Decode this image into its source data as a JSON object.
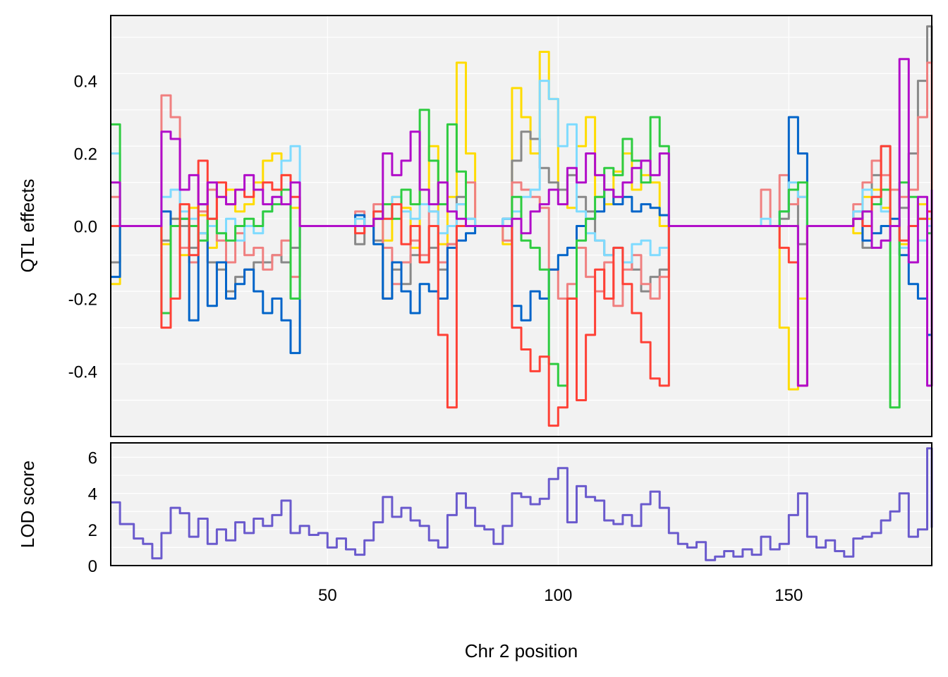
{
  "chart_data": [
    {
      "type": "line",
      "panel": "top",
      "ylabel": "QTL effects",
      "xlim": [
        3,
        181
      ],
      "ylim": [
        -0.58,
        0.58
      ],
      "yticks": [
        -0.4,
        -0.2,
        0.0,
        0.2,
        0.4
      ],
      "ytick_labels": [
        "-0.4",
        "-0.2",
        "0.0",
        "0.2",
        "0.4"
      ],
      "grid": true,
      "x": [
        3,
        5,
        8,
        10,
        12,
        14,
        16,
        18,
        20,
        22,
        24,
        26,
        28,
        30,
        32,
        34,
        36,
        38,
        40,
        42,
        44,
        46,
        48,
        50,
        52,
        54,
        56,
        58,
        60,
        62,
        64,
        66,
        68,
        70,
        72,
        74,
        76,
        78,
        80,
        82,
        84,
        86,
        88,
        90,
        92,
        94,
        96,
        98,
        100,
        102,
        104,
        106,
        108,
        110,
        112,
        114,
        116,
        118,
        120,
        122,
        124,
        126,
        128,
        130,
        132,
        134,
        136,
        138,
        140,
        142,
        144,
        146,
        148,
        150,
        152,
        154,
        156,
        158,
        160,
        162,
        164,
        166,
        168,
        170,
        172,
        174,
        176,
        178,
        180,
        181
      ],
      "series": [
        {
          "color": "#FFDC00",
          "values": [
            -0.16,
            0.0,
            0.0,
            0.0,
            0.0,
            -0.05,
            0.02,
            -0.08,
            0.05,
            0.03,
            -0.06,
            0.08,
            0.1,
            0.04,
            0.06,
            0.12,
            0.18,
            0.2,
            0.14,
            0.05,
            0.0,
            0.0,
            0.0,
            0.0,
            0.0,
            0.0,
            0.0,
            0.0,
            0.02,
            -0.04,
            0.08,
            0.05,
            -0.06,
            0.1,
            0.22,
            -0.05,
            0.08,
            0.45,
            0.2,
            0.0,
            0.0,
            0.0,
            -0.05,
            0.38,
            0.3,
            0.2,
            0.48,
            0.35,
            0.1,
            0.05,
            0.22,
            0.3,
            0.08,
            0.06,
            0.15,
            0.2,
            0.1,
            0.14,
            0.12,
            0.0,
            0.0,
            0.0,
            0.0,
            0.0,
            0.0,
            0.0,
            0.0,
            0.0,
            0.0,
            0.0,
            0.0,
            0.0,
            -0.28,
            -0.45,
            -0.2,
            0.0,
            0.0,
            0.0,
            0.0,
            0.0,
            -0.02,
            0.08,
            0.1,
            0.05,
            0.0,
            -0.05,
            0.0,
            0.06,
            0.02,
            0.0
          ]
        },
        {
          "color": "#888888",
          "values": [
            -0.1,
            0.0,
            0.0,
            0.0,
            0.0,
            -0.04,
            0.02,
            0.0,
            -0.06,
            -0.02,
            -0.1,
            -0.12,
            -0.18,
            -0.14,
            -0.12,
            -0.1,
            -0.1,
            -0.08,
            -0.1,
            -0.06,
            0.0,
            0.0,
            0.0,
            0.0,
            0.0,
            0.0,
            -0.05,
            0.0,
            -0.04,
            -0.2,
            -0.12,
            -0.16,
            -0.08,
            -0.1,
            -0.06,
            -0.12,
            -0.05,
            0.08,
            0.02,
            0.0,
            0.0,
            0.0,
            0.02,
            0.18,
            0.26,
            0.24,
            0.16,
            0.12,
            0.1,
            0.14,
            0.08,
            0.04,
            -0.04,
            -0.08,
            -0.06,
            -0.1,
            -0.12,
            -0.18,
            -0.14,
            -0.12,
            0.0,
            0.0,
            0.0,
            0.0,
            0.0,
            0.0,
            0.0,
            0.0,
            0.0,
            0.0,
            0.0,
            0.0,
            0.02,
            0.1,
            -0.05,
            0.0,
            0.0,
            0.0,
            0.0,
            0.0,
            0.04,
            -0.06,
            0.14,
            0.22,
            0.1,
            0.05,
            0.2,
            0.4,
            0.55,
            0.2
          ]
        },
        {
          "color": "#F08080",
          "values": [
            0.08,
            0.0,
            0.0,
            0.0,
            0.0,
            0.36,
            0.3,
            -0.06,
            -0.1,
            0.04,
            0.1,
            -0.04,
            -0.1,
            -0.02,
            -0.08,
            -0.06,
            -0.12,
            -0.08,
            -0.04,
            -0.14,
            0.0,
            0.0,
            0.0,
            0.0,
            0.0,
            0.0,
            0.04,
            0.0,
            0.06,
            -0.06,
            -0.16,
            -0.1,
            -0.04,
            -0.08,
            0.04,
            -0.1,
            -0.05,
            0.06,
            0.12,
            0.0,
            0.0,
            0.0,
            -0.04,
            0.12,
            0.1,
            0.08,
            0.05,
            -0.12,
            -0.2,
            -0.16,
            -0.06,
            -0.14,
            -0.18,
            -0.1,
            -0.22,
            -0.12,
            -0.08,
            -0.16,
            -0.2,
            -0.14,
            0.0,
            0.0,
            0.0,
            0.0,
            0.0,
            0.0,
            0.0,
            0.0,
            0.0,
            0.0,
            0.1,
            0.0,
            0.14,
            0.06,
            0.08,
            0.0,
            0.0,
            0.0,
            0.0,
            0.0,
            0.06,
            0.12,
            0.18,
            0.14,
            0.1,
            0.08,
            0.1,
            0.3,
            0.45,
            0.1
          ]
        },
        {
          "color": "#0064C9",
          "values": [
            -0.14,
            0.0,
            0.0,
            0.0,
            0.0,
            0.04,
            0.0,
            0.02,
            -0.26,
            0.06,
            -0.22,
            -0.1,
            -0.2,
            -0.16,
            -0.12,
            -0.18,
            -0.24,
            -0.2,
            -0.26,
            -0.35,
            0.0,
            0.0,
            0.0,
            0.0,
            0.0,
            0.0,
            0.03,
            0.0,
            -0.05,
            -0.2,
            -0.1,
            -0.18,
            -0.24,
            -0.16,
            -0.18,
            -0.2,
            -0.06,
            -0.04,
            -0.02,
            0.0,
            0.0,
            0.0,
            0.02,
            -0.22,
            -0.26,
            -0.18,
            -0.2,
            -0.12,
            -0.08,
            -0.06,
            0.0,
            0.02,
            0.04,
            0.1,
            0.06,
            0.08,
            0.04,
            0.06,
            0.05,
            0.03,
            0.0,
            0.0,
            0.0,
            0.0,
            0.0,
            0.0,
            0.0,
            0.0,
            0.0,
            0.0,
            0.0,
            0.0,
            0.04,
            0.3,
            0.2,
            0.0,
            0.0,
            0.0,
            0.0,
            0.0,
            0.02,
            -0.04,
            -0.02,
            0.0,
            0.02,
            -0.08,
            -0.16,
            -0.2,
            -0.3,
            -0.25
          ]
        },
        {
          "color": "#7FDBFF",
          "values": [
            0.2,
            0.0,
            0.0,
            0.0,
            0.0,
            0.08,
            0.1,
            0.04,
            0.02,
            -0.02,
            0.0,
            -0.02,
            0.02,
            -0.04,
            0.0,
            -0.02,
            0.04,
            0.08,
            0.18,
            0.22,
            0.0,
            0.0,
            0.0,
            0.0,
            0.0,
            0.0,
            0.02,
            0.0,
            0.04,
            0.02,
            0.08,
            0.04,
            0.02,
            0.06,
            0.04,
            -0.02,
            0.0,
            0.06,
            0.02,
            0.0,
            0.0,
            0.0,
            0.02,
            0.04,
            0.08,
            0.1,
            0.4,
            0.35,
            0.22,
            0.28,
            0.04,
            -0.02,
            -0.04,
            -0.08,
            -0.06,
            -0.1,
            -0.05,
            -0.04,
            -0.08,
            -0.06,
            0.0,
            0.0,
            0.0,
            0.0,
            0.0,
            0.0,
            0.0,
            0.0,
            0.0,
            0.0,
            0.02,
            0.0,
            0.04,
            0.12,
            0.08,
            0.0,
            0.0,
            0.0,
            0.0,
            0.0,
            0.04,
            0.1,
            0.08,
            0.04,
            0.0,
            -0.06,
            -0.1,
            -0.04,
            0.0,
            -0.05
          ]
        },
        {
          "color": "#2ECC40",
          "values": [
            0.28,
            0.0,
            0.0,
            0.0,
            0.0,
            -0.24,
            0.0,
            0.02,
            0.0,
            -0.04,
            0.02,
            -0.02,
            -0.04,
            0.0,
            0.02,
            0.0,
            0.04,
            0.06,
            0.1,
            -0.2,
            0.0,
            0.0,
            0.0,
            0.0,
            0.0,
            0.0,
            0.0,
            0.0,
            0.02,
            0.06,
            0.02,
            0.1,
            0.06,
            0.32,
            0.18,
            0.06,
            0.28,
            0.15,
            0.0,
            0.0,
            0.0,
            0.0,
            0.0,
            0.08,
            -0.04,
            -0.06,
            -0.12,
            -0.38,
            -0.44,
            -0.2,
            -0.04,
            0.02,
            0.08,
            0.16,
            0.14,
            0.24,
            0.18,
            0.12,
            0.3,
            0.22,
            0.0,
            0.0,
            0.0,
            0.0,
            0.0,
            0.0,
            0.0,
            0.0,
            0.0,
            0.0,
            0.0,
            0.0,
            0.04,
            0.1,
            0.12,
            0.0,
            0.0,
            0.0,
            0.0,
            0.0,
            0.02,
            0.04,
            0.06,
            0.1,
            -0.5,
            0.12,
            0.08,
            0.02,
            -0.02,
            0.05
          ]
        },
        {
          "color": "#FF4136",
          "values": [
            0.0,
            0.0,
            0.0,
            0.0,
            0.0,
            -0.28,
            -0.2,
            0.06,
            -0.08,
            0.18,
            0.02,
            0.12,
            0.06,
            0.1,
            0.08,
            0.1,
            0.12,
            0.1,
            0.14,
            0.08,
            0.0,
            0.0,
            0.0,
            0.0,
            0.0,
            0.0,
            -0.02,
            0.0,
            0.04,
            0.02,
            0.06,
            -0.05,
            0.0,
            -0.1,
            0.0,
            -0.3,
            -0.5,
            0.0,
            0.0,
            0.0,
            0.0,
            0.0,
            0.0,
            -0.28,
            -0.34,
            -0.4,
            -0.36,
            -0.55,
            -0.5,
            -0.2,
            -0.48,
            -0.3,
            -0.12,
            -0.2,
            -0.06,
            -0.16,
            -0.24,
            -0.32,
            -0.42,
            -0.44,
            0.0,
            0.0,
            0.0,
            0.0,
            0.0,
            0.0,
            0.0,
            0.0,
            0.0,
            0.0,
            0.0,
            0.0,
            -0.06,
            -0.1,
            -0.44,
            0.0,
            0.0,
            0.0,
            0.0,
            0.0,
            0.02,
            0.0,
            0.08,
            0.22,
            0.0,
            -0.04,
            0.0,
            0.02,
            0.04,
            0.0
          ]
        },
        {
          "color": "#B10DC9",
          "values": [
            0.12,
            0.0,
            0.0,
            0.0,
            0.0,
            0.26,
            0.24,
            0.1,
            0.14,
            0.06,
            0.12,
            0.08,
            0.06,
            0.1,
            0.14,
            0.1,
            0.06,
            0.08,
            0.06,
            0.12,
            0.0,
            0.0,
            0.0,
            0.0,
            0.0,
            0.0,
            0.0,
            0.0,
            0.02,
            0.2,
            0.14,
            0.18,
            0.26,
            0.1,
            0.06,
            0.12,
            0.04,
            0.02,
            0.0,
            0.0,
            0.0,
            0.0,
            0.0,
            0.02,
            -0.02,
            0.04,
            0.06,
            0.1,
            0.06,
            0.16,
            0.12,
            0.2,
            0.14,
            0.1,
            0.08,
            0.12,
            0.16,
            0.18,
            0.14,
            0.2,
            0.0,
            0.0,
            0.0,
            0.0,
            0.0,
            0.0,
            0.0,
            0.0,
            0.0,
            0.0,
            0.0,
            0.0,
            0.0,
            0.0,
            -0.44,
            0.0,
            0.0,
            0.0,
            0.0,
            0.0,
            0.02,
            0.04,
            -0.06,
            -0.04,
            0.0,
            0.46,
            -0.1,
            0.08,
            -0.44,
            0.1
          ]
        }
      ]
    },
    {
      "type": "line",
      "panel": "bottom",
      "ylabel": "LOD score",
      "xlabel": "Chr 2 position",
      "xlim": [
        3,
        181
      ],
      "xticks": [
        50,
        100,
        150
      ],
      "xtick_labels": [
        "50",
        "100",
        "150"
      ],
      "ylim": [
        0,
        6.8
      ],
      "yticks": [
        0,
        2,
        4,
        6
      ],
      "ytick_labels": [
        "0",
        "2",
        "4",
        "6"
      ],
      "grid": true,
      "x": [
        3,
        5,
        8,
        10,
        12,
        14,
        16,
        18,
        20,
        22,
        24,
        26,
        28,
        30,
        32,
        34,
        36,
        38,
        40,
        42,
        44,
        46,
        48,
        50,
        52,
        54,
        56,
        58,
        60,
        62,
        64,
        66,
        68,
        70,
        72,
        74,
        76,
        78,
        80,
        82,
        84,
        86,
        88,
        90,
        92,
        94,
        96,
        98,
        100,
        102,
        104,
        106,
        108,
        110,
        112,
        114,
        116,
        118,
        120,
        122,
        124,
        126,
        128,
        130,
        132,
        134,
        136,
        138,
        140,
        142,
        144,
        146,
        148,
        150,
        152,
        154,
        156,
        158,
        160,
        162,
        164,
        166,
        168,
        170,
        172,
        174,
        176,
        178,
        180,
        181
      ],
      "series": [
        {
          "color": "#6A5ACD",
          "values": [
            3.5,
            2.3,
            1.5,
            1.2,
            0.4,
            1.8,
            3.2,
            2.9,
            1.6,
            2.6,
            1.2,
            2.0,
            1.4,
            2.4,
            1.8,
            2.6,
            2.2,
            2.8,
            3.6,
            1.8,
            2.2,
            1.7,
            1.8,
            1.0,
            1.5,
            0.9,
            0.6,
            1.4,
            2.4,
            3.8,
            2.7,
            3.2,
            2.5,
            2.2,
            1.4,
            1.0,
            2.8,
            4.0,
            3.2,
            2.2,
            2.0,
            1.2,
            2.2,
            4.0,
            3.8,
            3.4,
            3.7,
            4.8,
            5.4,
            2.4,
            4.4,
            3.8,
            3.6,
            2.5,
            2.3,
            2.8,
            2.2,
            3.4,
            4.1,
            3.2,
            1.8,
            1.2,
            1.0,
            1.3,
            0.3,
            0.5,
            0.8,
            0.5,
            0.9,
            0.6,
            1.6,
            0.9,
            1.2,
            2.8,
            4.0,
            1.6,
            1.0,
            1.4,
            0.8,
            0.5,
            1.5,
            1.6,
            1.8,
            2.5,
            3.0,
            4.0,
            1.6,
            2.0,
            6.5,
            2.1
          ]
        }
      ]
    }
  ]
}
